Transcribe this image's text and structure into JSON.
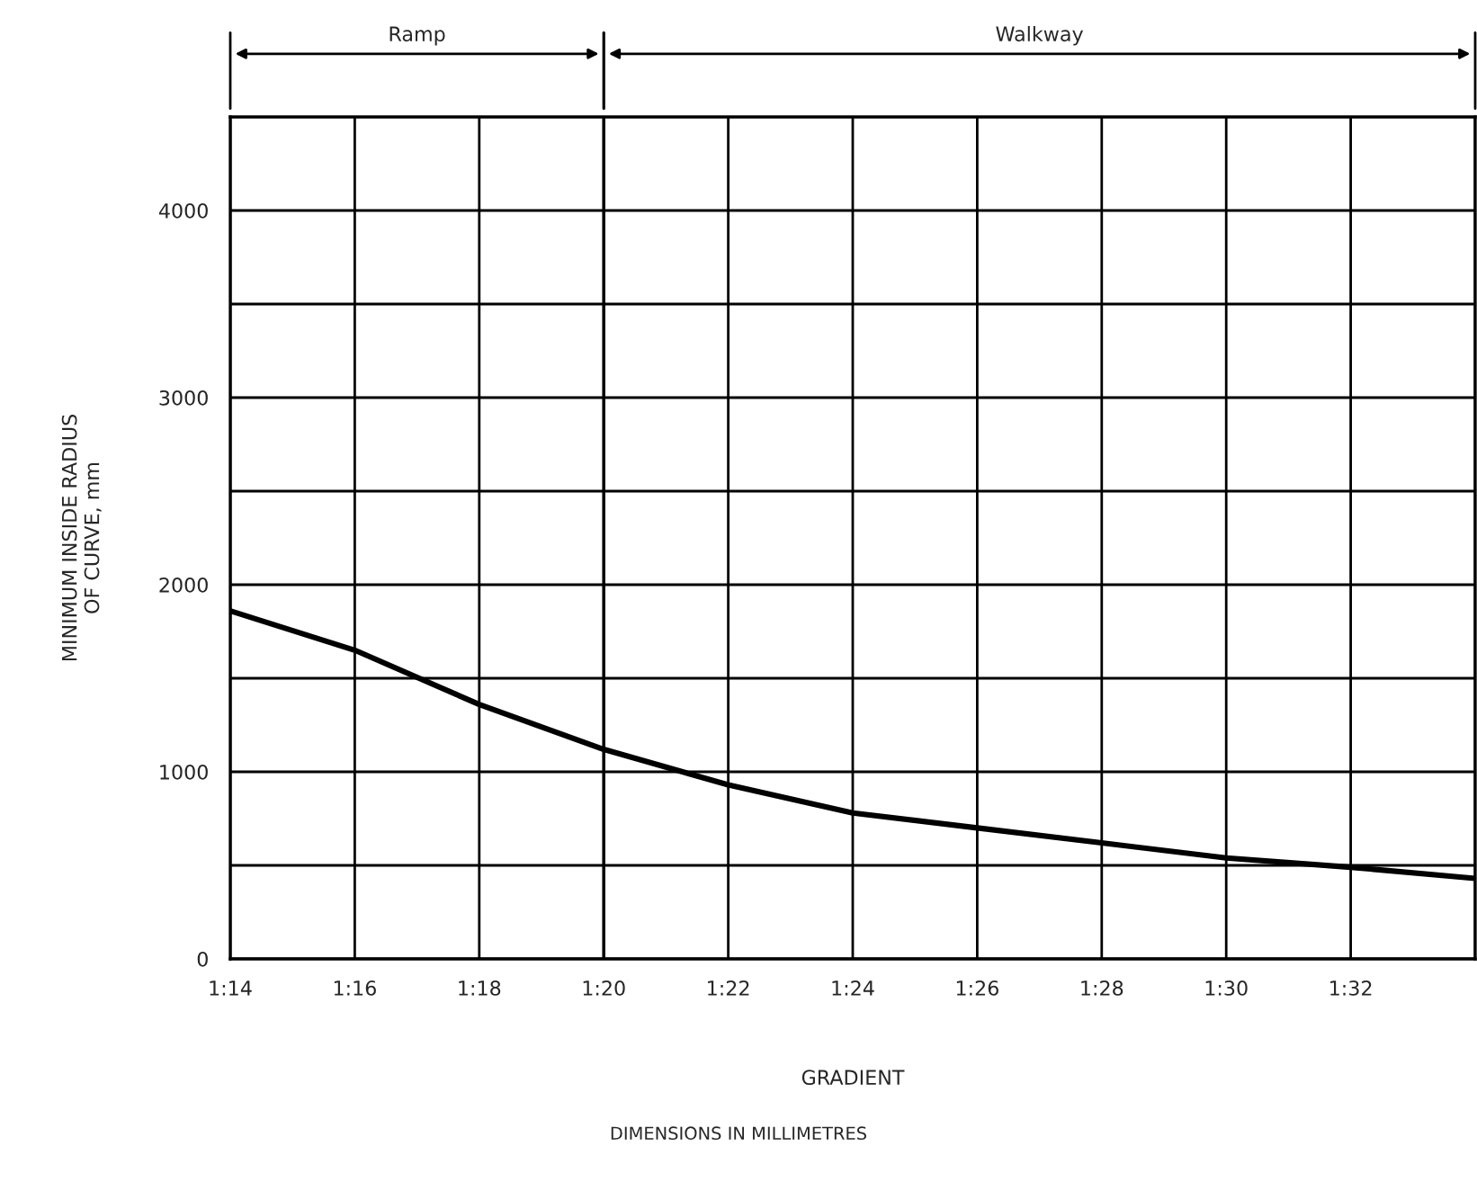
{
  "chart_data": {
    "type": "line",
    "xlabel": "GRADIENT",
    "ylabel": "MINIMUM INSIDE RADIUS\nOF CURVE, mm",
    "categories": [
      "1:14",
      "1:16",
      "1:18",
      "1:20",
      "1:22",
      "1:24",
      "1:26",
      "1:28",
      "1:30",
      "1:32",
      null
    ],
    "series": [
      {
        "color": "#000000",
        "values": [
          1860,
          1650,
          1360,
          1120,
          930,
          780,
          700,
          620,
          540,
          490,
          430
        ]
      }
    ],
    "ylim": [
      0,
      4500
    ],
    "yticks": [
      0,
      {
        "value": 500,
        "label": null
      },
      1000,
      {
        "value": 1500,
        "label": null
      },
      2000,
      {
        "value": 2500,
        "label": null
      },
      3000,
      {
        "value": 3500,
        "label": null
      },
      4000
    ],
    "grid": true,
    "marker": "none",
    "line_style": "solid",
    "ref_lines": [
      {
        "axis": "x",
        "value": "1:20"
      }
    ],
    "annotations": [
      "Ramp",
      "Walkway",
      "DIMENSIONS IN MILLIMETRES"
    ]
  }
}
